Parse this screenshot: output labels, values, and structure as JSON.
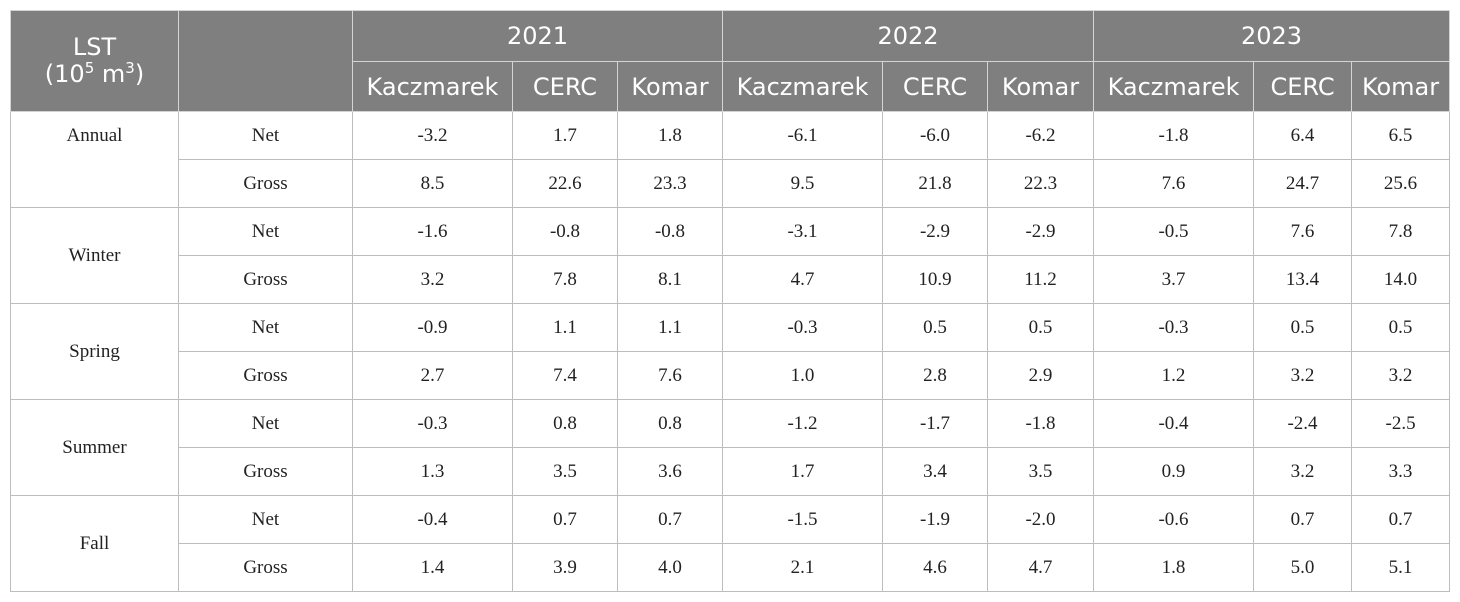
{
  "header": {
    "lst_label": "LST",
    "lst_unit_base": "(10",
    "lst_unit_exp": "5",
    "lst_unit_mid": " m",
    "lst_unit_exp2": "3",
    "lst_unit_close": ")",
    "years": [
      "2021",
      "2022",
      "2023"
    ],
    "methods": [
      "Kaczmarek",
      "CERC",
      "Komar",
      "Kaczmarek",
      "CERC",
      "Komar",
      "Kaczmarek",
      "CERC",
      "Komar"
    ]
  },
  "rows": [
    {
      "season": "Annual",
      "type": "Net",
      "values": [
        "-3.2",
        "1.7",
        "1.8",
        "-6.1",
        "-6.0",
        "-6.2",
        "-1.8",
        "6.4",
        "6.5"
      ]
    },
    {
      "season": "Annual",
      "type": "Gross",
      "values": [
        "8.5",
        "22.6",
        "23.3",
        "9.5",
        "21.8",
        "22.3",
        "7.6",
        "24.7",
        "25.6"
      ]
    },
    {
      "season": "Winter",
      "type": "Net",
      "values": [
        "-1.6",
        "-0.8",
        "-0.8",
        "-3.1",
        "-2.9",
        "-2.9",
        "-0.5",
        "7.6",
        "7.8"
      ]
    },
    {
      "season": "Winter",
      "type": "Gross",
      "values": [
        "3.2",
        "7.8",
        "8.1",
        "4.7",
        "10.9",
        "11.2",
        "3.7",
        "13.4",
        "14.0"
      ]
    },
    {
      "season": "Spring",
      "type": "Net",
      "values": [
        "-0.9",
        "1.1",
        "1.1",
        "-0.3",
        "0.5",
        "0.5",
        "-0.3",
        "0.5",
        "0.5"
      ]
    },
    {
      "season": "Spring",
      "type": "Gross",
      "values": [
        "2.7",
        "7.4",
        "7.6",
        "1.0",
        "2.8",
        "2.9",
        "1.2",
        "3.2",
        "3.2"
      ]
    },
    {
      "season": "Summer",
      "type": "Net",
      "values": [
        "-0.3",
        "0.8",
        "0.8",
        "-1.2",
        "-1.7",
        "-1.8",
        "-0.4",
        "-2.4",
        "-2.5"
      ]
    },
    {
      "season": "Summer",
      "type": "Gross",
      "values": [
        "1.3",
        "3.5",
        "3.6",
        "1.7",
        "3.4",
        "3.5",
        "0.9",
        "3.2",
        "3.3"
      ]
    },
    {
      "season": "Fall",
      "type": "Net",
      "values": [
        "-0.4",
        "0.7",
        "0.7",
        "-1.5",
        "-1.9",
        "-2.0",
        "-0.6",
        "0.7",
        "0.7"
      ]
    },
    {
      "season": "Fall",
      "type": "Gross",
      "values": [
        "1.4",
        "3.9",
        "4.0",
        "2.1",
        "4.6",
        "4.7",
        "1.8",
        "5.0",
        "5.1"
      ]
    }
  ]
}
